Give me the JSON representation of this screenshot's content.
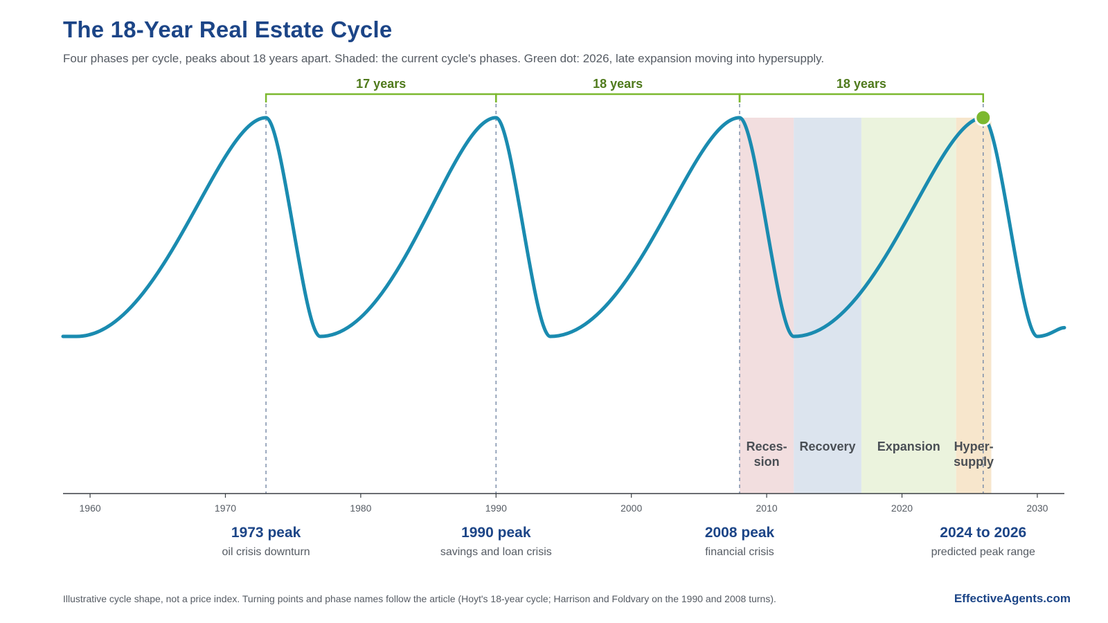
{
  "title": "The 18-Year Real Estate Cycle",
  "subtitle": "Four phases per cycle, peaks about 18 years apart. Shaded: the current cycle's phases. Green dot: 2026, late expansion moving into hypersupply.",
  "footnote": "Illustrative cycle shape, not a price index. Turning points and phase names follow the article (Hoyt's 18-year cycle; Harrison and Foldvary on the 1990 and 2008 turns).",
  "brand": "EffectiveAgents.com",
  "colors": {
    "curve": "#1a8bb0",
    "accent_green": "#7cb82f",
    "span_label": "#4f7a1c",
    "peak_label": "#1c4587",
    "recession_band": "#f2dedf",
    "recovery_band": "#dce4ee",
    "expansion_band": "#ebf3dd",
    "hypersupply_band": "#f7e6cc"
  },
  "chart_data": {
    "type": "line",
    "x_ticks": [
      1960,
      1970,
      1980,
      1990,
      2000,
      2010,
      2020,
      2030
    ],
    "xlim": [
      1958,
      2032
    ],
    "curve_keypoints": [
      {
        "x": 1958,
        "y": 0.0
      },
      {
        "x": 1959,
        "y": 0.0
      },
      {
        "x": 1973,
        "y": 1.0
      },
      {
        "x": 1977,
        "y": 0.0
      },
      {
        "x": 1990,
        "y": 1.0
      },
      {
        "x": 1994,
        "y": 0.0
      },
      {
        "x": 2008,
        "y": 1.0
      },
      {
        "x": 2012,
        "y": 0.0
      },
      {
        "x": 2026,
        "y": 1.0
      },
      {
        "x": 2030,
        "y": 0.0
      },
      {
        "x": 2032,
        "y": 0.04
      }
    ],
    "current_point": {
      "x": 2026,
      "y": 1.0
    },
    "peaks": [
      {
        "year": 1973,
        "label": "1973 peak",
        "sublabel": "oil crisis downturn"
      },
      {
        "year": 1990,
        "label": "1990 peak",
        "sublabel": "savings and loan crisis"
      },
      {
        "year": 2008,
        "label": "2008 peak",
        "sublabel": "financial crisis"
      },
      {
        "year": 2026,
        "label": "2024 to 2026",
        "sublabel": "predicted peak range"
      }
    ],
    "spans": [
      {
        "from": 1973,
        "to": 1990,
        "label": "17 years"
      },
      {
        "from": 1990,
        "to": 2008,
        "label": "18 years"
      },
      {
        "from": 2008,
        "to": 2026,
        "label": "18 years"
      }
    ],
    "phases": [
      {
        "name": "recession",
        "from": 2008,
        "to": 2012,
        "label_lines": [
          "Reces-",
          "sion"
        ]
      },
      {
        "name": "recovery",
        "from": 2012,
        "to": 2017,
        "label_lines": [
          "Recovery"
        ]
      },
      {
        "name": "expansion",
        "from": 2017,
        "to": 2024,
        "label_lines": [
          "Expansion"
        ]
      },
      {
        "name": "hypersupply",
        "from": 2024,
        "to": 2026.6,
        "label_lines": [
          "Hyper-",
          "supply"
        ]
      }
    ]
  }
}
